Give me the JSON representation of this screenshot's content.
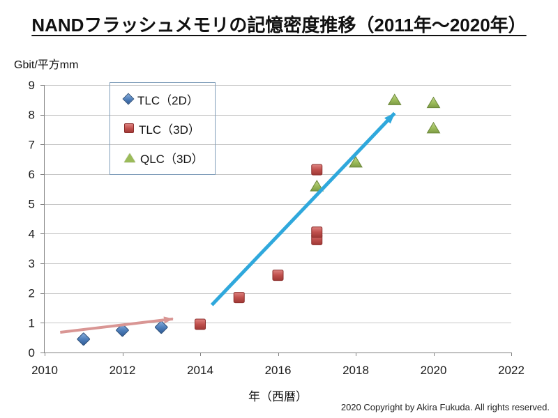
{
  "page": {
    "copyright": "2020 Copyright by Akira Fukuda. All rights reserved."
  },
  "chart_data": {
    "type": "scatter",
    "title": "NANDフラッシュメモリの記憶密度推移（2011年～2020年）",
    "xlabel": "年（西暦）",
    "ylabel": "Gbit/平方mm",
    "xlim": [
      2010,
      2022
    ],
    "ylim": [
      0,
      9
    ],
    "xticks": [
      2010,
      2012,
      2014,
      2016,
      2018,
      2020,
      2022
    ],
    "yticks": [
      0,
      1,
      2,
      3,
      4,
      5,
      6,
      7,
      8,
      9
    ],
    "grid": "horizontal",
    "legend_position": "upper-left-inside",
    "colors": {
      "grid": "#c6c6c6",
      "axis": "#808080",
      "tick_label": "#1a1a1a",
      "trend_arrow_early": "#d99694",
      "trend_arrow_late": "#2fa8dc",
      "legend_border": "#7f9db9"
    },
    "series": [
      {
        "name": "TLC（2D）",
        "marker": "diamond",
        "color": "#4f81bd",
        "points": [
          [
            2011,
            0.45
          ],
          [
            2012,
            0.75
          ],
          [
            2013,
            0.85
          ]
        ]
      },
      {
        "name": "TLC（3D）",
        "marker": "square",
        "color": "#c0504d",
        "points": [
          [
            2014,
            0.95
          ],
          [
            2015,
            1.85
          ],
          [
            2016,
            2.6
          ],
          [
            2017,
            3.8
          ],
          [
            2017,
            4.05
          ],
          [
            2017,
            6.15
          ]
        ]
      },
      {
        "name": "QLC（3D）",
        "marker": "triangle",
        "color": "#9bbb59",
        "points": [
          [
            2017,
            5.6
          ],
          [
            2018,
            6.4
          ],
          [
            2019,
            8.5
          ],
          [
            2020,
            7.55
          ],
          [
            2020,
            8.4
          ]
        ]
      }
    ],
    "annotations": [
      {
        "type": "arrow",
        "name": "early-trend-arrow",
        "color": "#d99694",
        "from": [
          2010.4,
          0.68
        ],
        "to": [
          2013.3,
          1.13
        ]
      },
      {
        "type": "arrow",
        "name": "late-trend-arrow",
        "color": "#2fa8dc",
        "from": [
          2014.3,
          1.6
        ],
        "to": [
          2019.0,
          8.05
        ]
      }
    ]
  }
}
